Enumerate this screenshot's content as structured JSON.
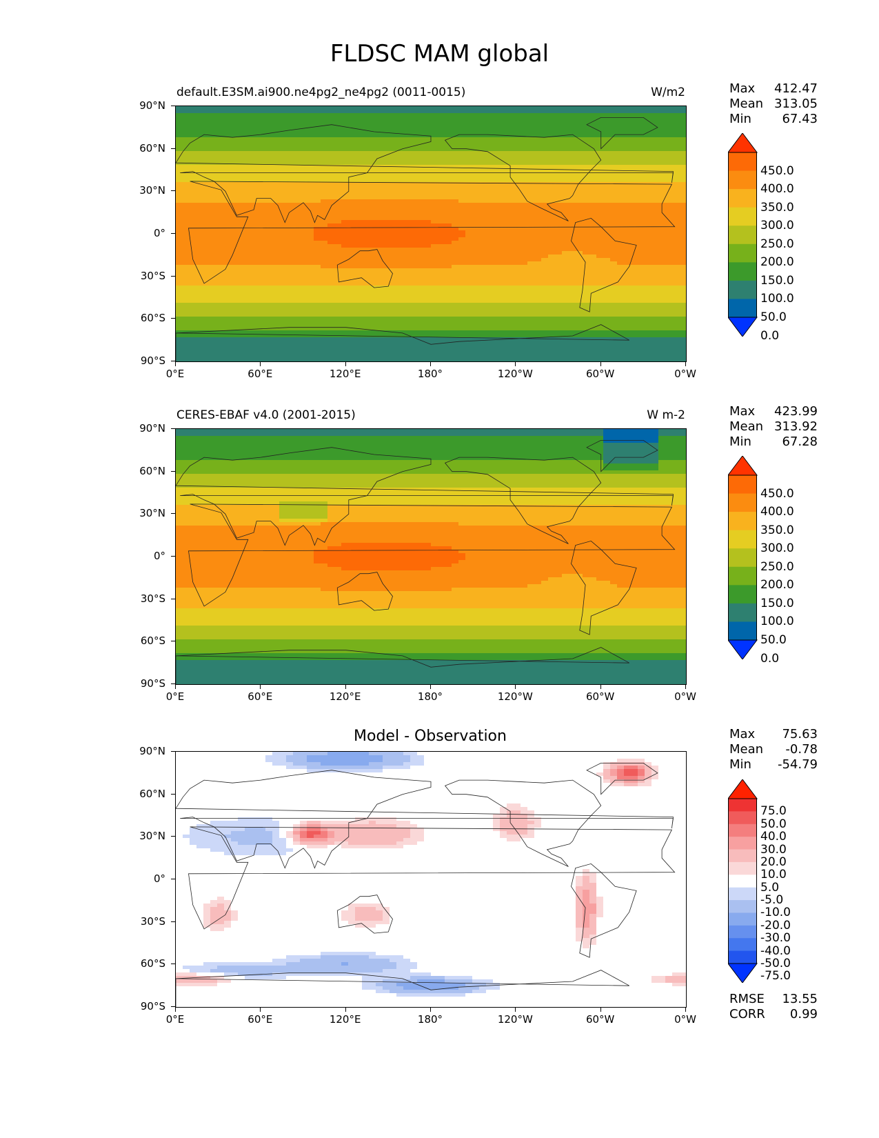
{
  "figure_title": "FLDSC MAM global",
  "y_ticks": [
    "90°N",
    "60°N",
    "30°N",
    "0°",
    "30°S",
    "60°S",
    "90°S"
  ],
  "x_ticks": [
    "0°E",
    "60°E",
    "120°E",
    "180°",
    "120°W",
    "60°W",
    "0°W"
  ],
  "panels": [
    {
      "title_left": "default.E3SM.ai900.ne4pg2_ne4pg2 (0011-0015)",
      "title_right": "W/m2",
      "stats": {
        "max_label": "Max",
        "max": "412.47",
        "mean_label": "Mean",
        "mean": "313.05",
        "min_label": "Min",
        "min": "67.43"
      },
      "colorbar_labels": [
        "450.0",
        "400.0",
        "350.0",
        "300.0",
        "250.0",
        "200.0",
        "150.0",
        "100.0",
        "50.0",
        "0.0"
      ]
    },
    {
      "title_left": "CERES-EBAF v4.0 (2001-2015)",
      "title_right": "W m-2",
      "stats": {
        "max_label": "Max",
        "max": "423.99",
        "mean_label": "Mean",
        "mean": "313.92",
        "min_label": "Min",
        "min": "67.28"
      },
      "colorbar_labels": [
        "450.0",
        "400.0",
        "350.0",
        "300.0",
        "250.0",
        "200.0",
        "150.0",
        "100.0",
        "50.0",
        "0.0"
      ]
    },
    {
      "title_center": "Model - Observation",
      "stats": {
        "max_label": "Max",
        "max": "75.63",
        "mean_label": "Mean",
        "mean": "-0.78",
        "min_label": "Min",
        "min": "-54.79"
      },
      "colorbar_labels": [
        "75.0",
        "50.0",
        "40.0",
        "30.0",
        "20.0",
        "10.0",
        "5.0",
        "-5.0",
        "-10.0",
        "-20.0",
        "-30.0",
        "-40.0",
        "-50.0",
        "-75.0"
      ],
      "rmse_label": "RMSE",
      "rmse": "13.55",
      "corr_label": "CORR",
      "corr": "0.99"
    }
  ],
  "colors": {
    "abs_scale": [
      "#0033ff",
      "#0066aa",
      "#2e8070",
      "#3c9a2b",
      "#77b11b",
      "#b4c11e",
      "#e5cd22",
      "#f9b21e",
      "#fb8c10",
      "#fd6a06",
      "#ff3300"
    ],
    "diff_scale": [
      "#0033ff",
      "#2255ee",
      "#4477ee",
      "#6690ee",
      "#88aaee",
      "#aac0f0",
      "#ccd8f8",
      "#ffffff",
      "#fad8d8",
      "#f8bcbc",
      "#f7a0a0",
      "#f47e7e",
      "#f05b5b",
      "#ee3333",
      "#ff2200"
    ]
  }
}
